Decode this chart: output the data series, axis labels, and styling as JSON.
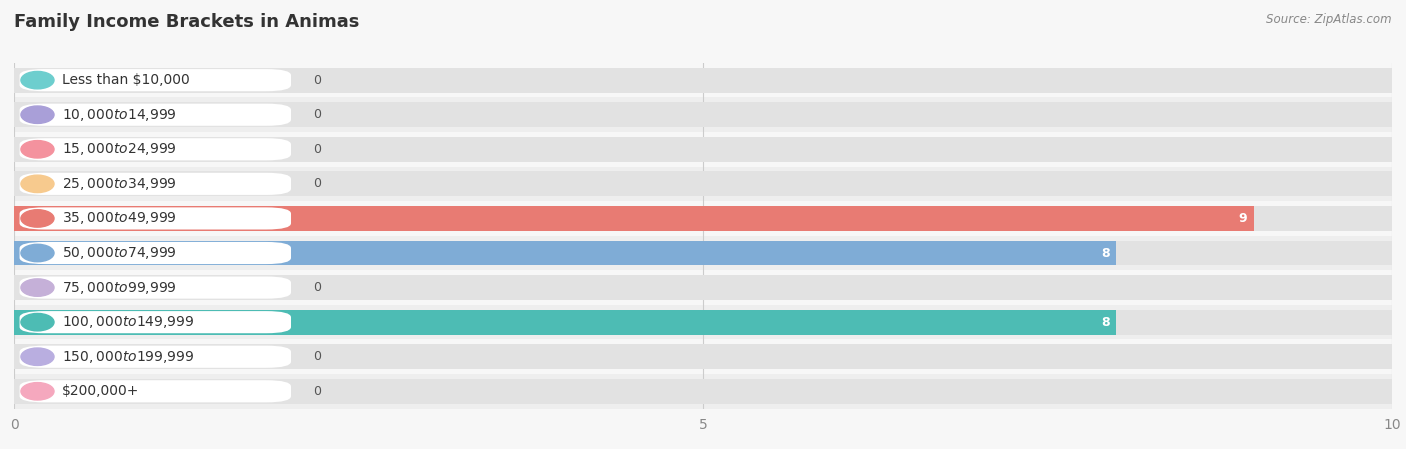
{
  "title": "Family Income Brackets in Animas",
  "source": "Source: ZipAtlas.com",
  "categories": [
    "Less than $10,000",
    "$10,000 to $14,999",
    "$15,000 to $24,999",
    "$25,000 to $34,999",
    "$35,000 to $49,999",
    "$50,000 to $74,999",
    "$75,000 to $99,999",
    "$100,000 to $149,999",
    "$150,000 to $199,999",
    "$200,000+"
  ],
  "values": [
    0,
    0,
    0,
    0,
    9,
    8,
    0,
    8,
    0,
    0
  ],
  "bar_colors": [
    "#6dcece",
    "#a99fd8",
    "#f4929e",
    "#f7ca8e",
    "#e87b73",
    "#7facd6",
    "#c5b0d8",
    "#4dbcb4",
    "#b9aee0",
    "#f5a8be"
  ],
  "xlim": [
    0,
    10
  ],
  "background_color": "#f7f7f7",
  "row_bg_color_odd": "#eeeeee",
  "row_bg_color_even": "#f7f7f7",
  "bar_bg_color": "#e2e2e2",
  "title_fontsize": 13,
  "label_fontsize": 10,
  "value_fontsize": 9
}
